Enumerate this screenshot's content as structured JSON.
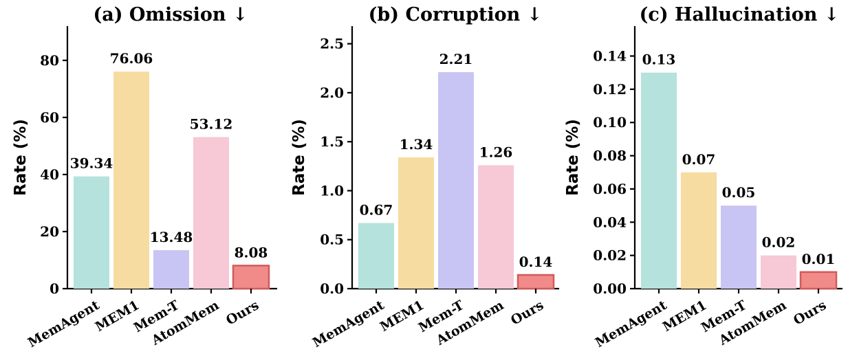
{
  "colors": {
    "bars": [
      "#b5e2dd",
      "#f6dca0",
      "#c8c5f4",
      "#f7c8d5",
      "#f08b89"
    ],
    "ours_edge": "#d35a5a"
  },
  "chart_data": [
    {
      "type": "bar",
      "title": "(a) Omission ↓",
      "ylabel": "Rate (%)",
      "categories": [
        "MemAgent",
        "MEM1",
        "Mem-T",
        "AtomMem",
        "Ours"
      ],
      "values": [
        39.34,
        76.06,
        13.48,
        53.12,
        8.08
      ],
      "value_labels": [
        "39.34",
        "76.06",
        "13.48",
        "53.12",
        "8.08"
      ],
      "ylim": [
        0,
        92
      ],
      "yticks": [
        0,
        20,
        40,
        60,
        80
      ],
      "ytick_labels": [
        "0",
        "20",
        "40",
        "60",
        "80"
      ],
      "grid": false,
      "highlight": "Ours"
    },
    {
      "type": "bar",
      "title": "(b) Corruption ↓",
      "ylabel": "Rate (%)",
      "categories": [
        "MemAgent",
        "MEM1",
        "Mem-T",
        "AtomMem",
        "Ours"
      ],
      "values": [
        0.67,
        1.34,
        2.21,
        1.26,
        0.14
      ],
      "value_labels": [
        "0.67",
        "1.34",
        "2.21",
        "1.26",
        "0.14"
      ],
      "ylim": [
        0,
        2.68
      ],
      "yticks": [
        0,
        0.5,
        1.0,
        1.5,
        2.0,
        2.5
      ],
      "ytick_labels": [
        "0.0",
        "0.5",
        "1.0",
        "1.5",
        "2.0",
        "2.5"
      ],
      "grid": false,
      "highlight": "Ours"
    },
    {
      "type": "bar",
      "title": "(c) Hallucination ↓",
      "ylabel": "Rate (%)",
      "categories": [
        "MemAgent",
        "MEM1",
        "Mem-T",
        "AtomMem",
        "Ours"
      ],
      "values": [
        0.13,
        0.07,
        0.05,
        0.02,
        0.01
      ],
      "value_labels": [
        "0.13",
        "0.07",
        "0.05",
        "0.02",
        "0.01"
      ],
      "ylim": [
        0,
        0.158
      ],
      "yticks": [
        0,
        0.02,
        0.04,
        0.06,
        0.08,
        0.1,
        0.12,
        0.14
      ],
      "ytick_labels": [
        "0.00",
        "0.02",
        "0.04",
        "0.06",
        "0.08",
        "0.10",
        "0.12",
        "0.14"
      ],
      "grid": false,
      "highlight": "Ours"
    }
  ]
}
